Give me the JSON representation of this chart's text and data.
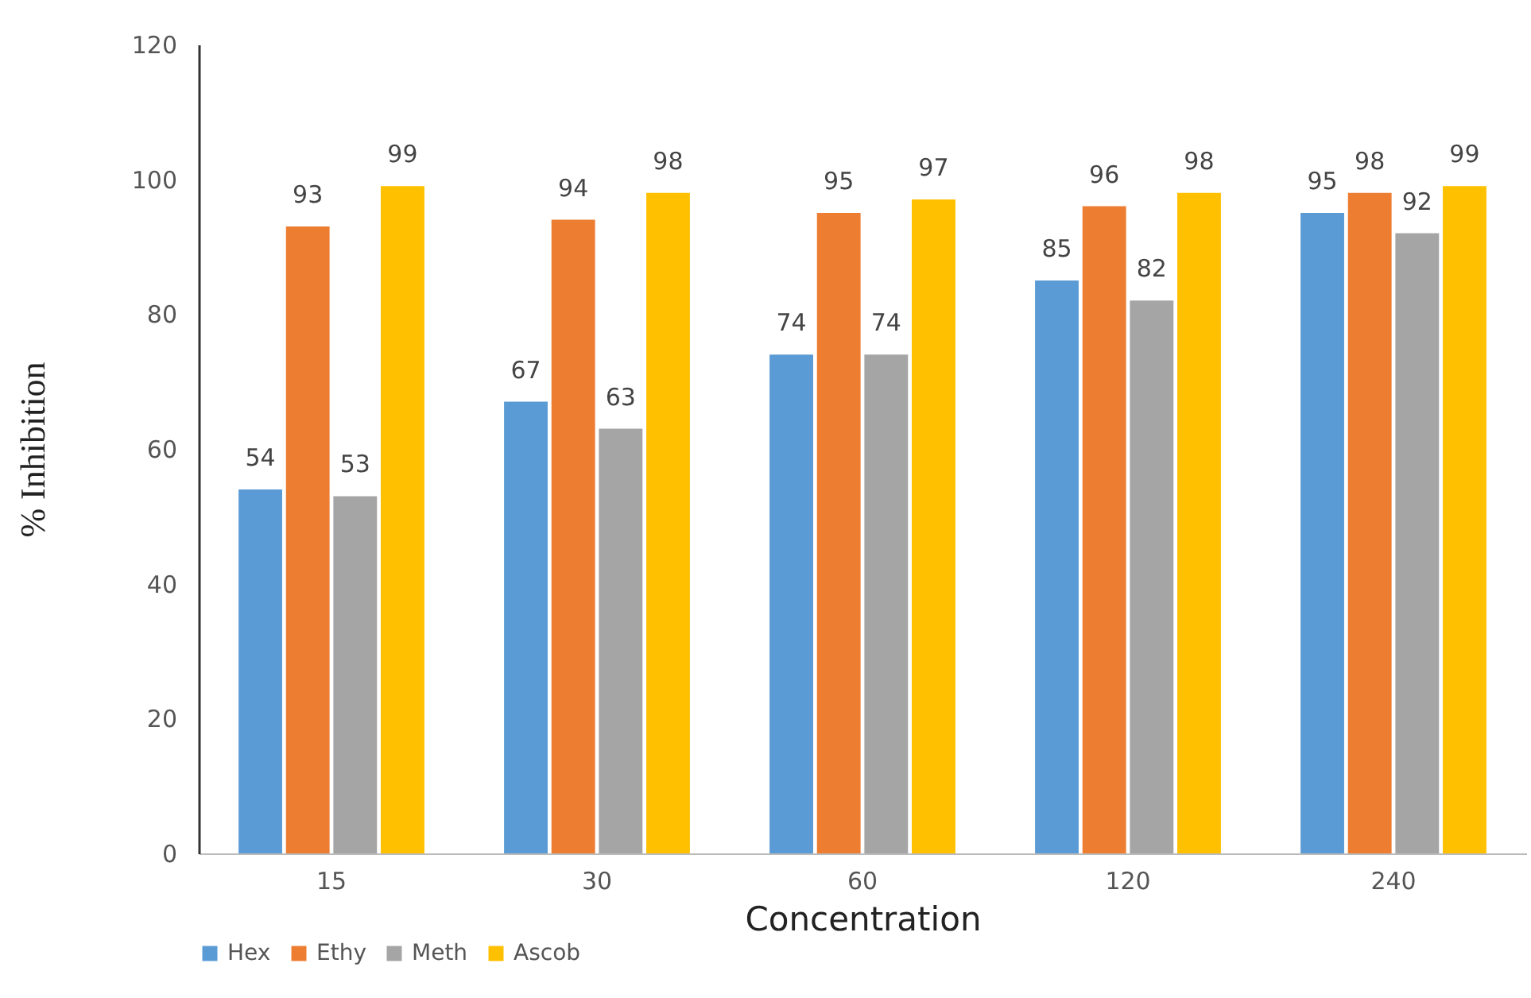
{
  "chart_data": {
    "type": "bar",
    "xlabel": "Concentration",
    "ylabel": "% Inhibition",
    "categories": [
      "15",
      "30",
      "60",
      "120",
      "240"
    ],
    "series": [
      {
        "name": "Hex",
        "color": "#5b9bd5",
        "values": [
          54,
          67,
          74,
          85,
          95
        ]
      },
      {
        "name": "Ethy",
        "color": "#ed7d31",
        "values": [
          93,
          94,
          95,
          96,
          98
        ]
      },
      {
        "name": "Meth",
        "color": "#a5a5a5",
        "values": [
          53,
          63,
          74,
          82,
          92
        ]
      },
      {
        "name": "Ascob",
        "color": "#ffc000",
        "values": [
          99,
          98,
          97,
          98,
          99
        ]
      }
    ],
    "ylim": [
      0,
      120
    ],
    "yticks": [
      0,
      20,
      40,
      60,
      80,
      100,
      120
    ],
    "data_labels": true,
    "legend": "bottom",
    "grid": false
  }
}
